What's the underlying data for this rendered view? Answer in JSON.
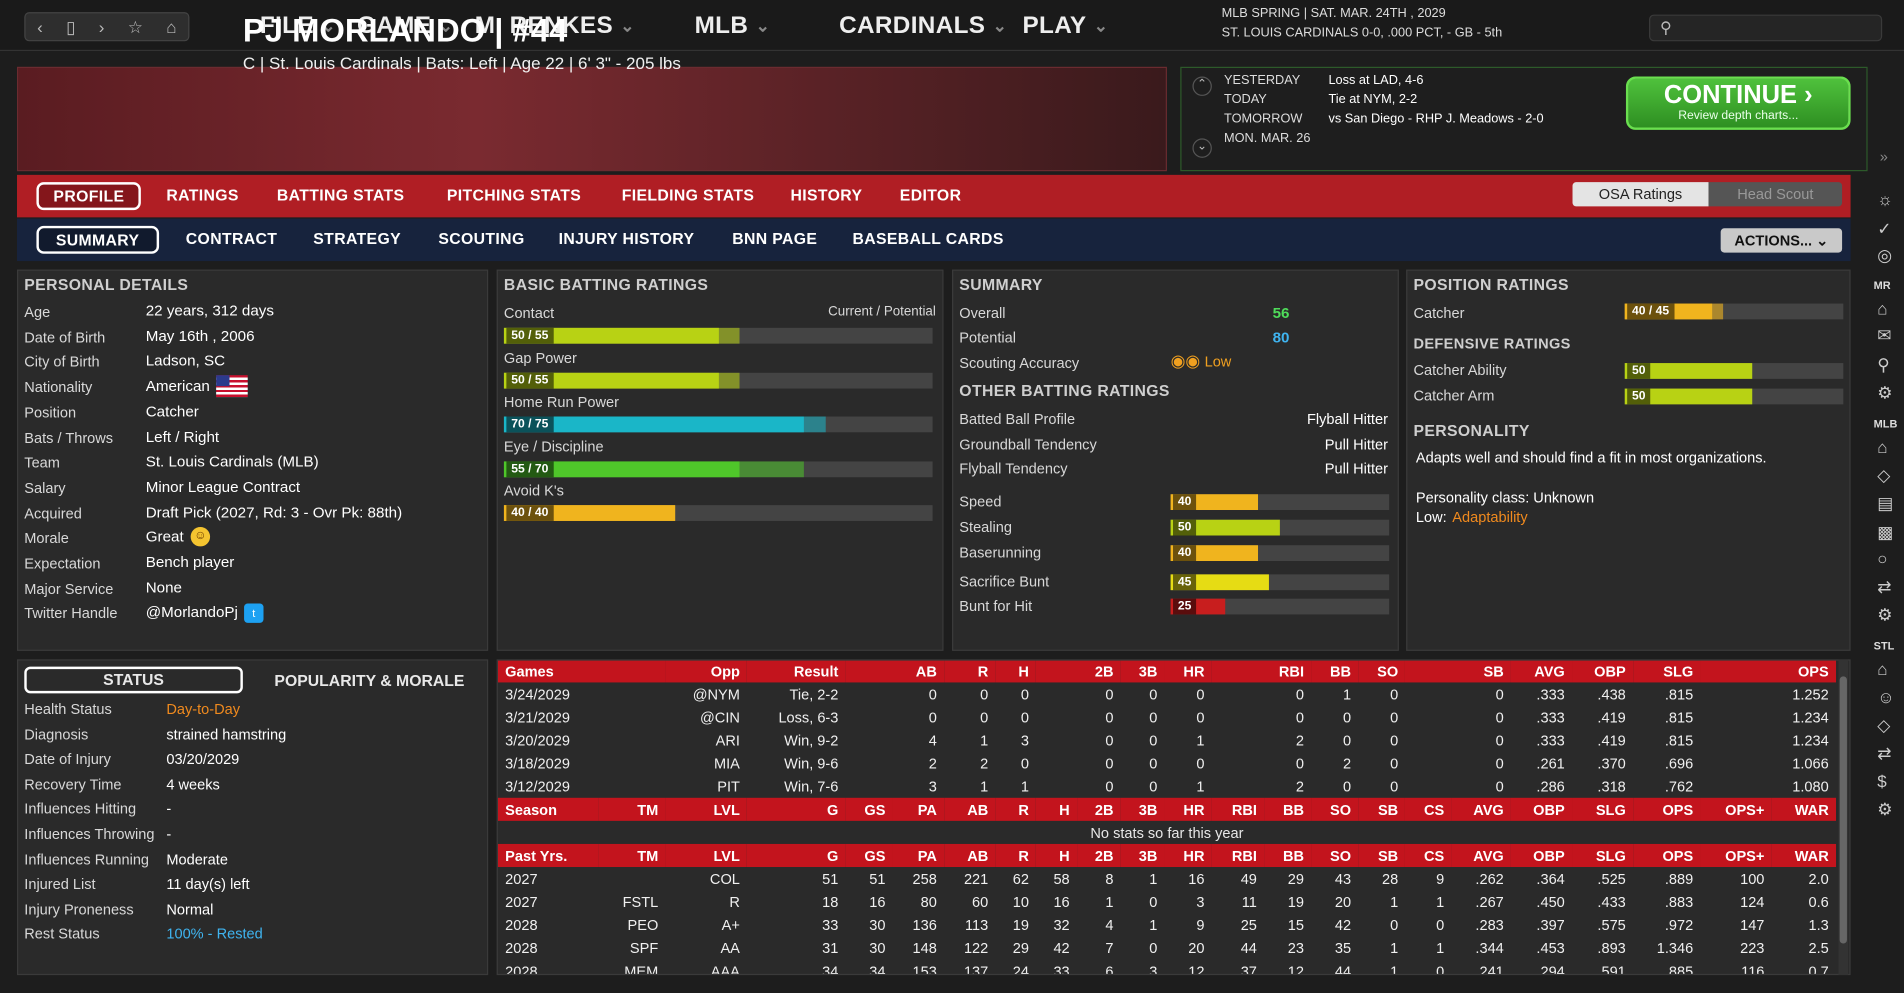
{
  "topbar": {
    "menus": [
      "FILE",
      "GAME",
      "M. RENKES",
      "MLB",
      "CARDINALS",
      "PLAY"
    ],
    "date_line1": "MLB SPRING  |  SAT. MAR. 24TH , 2029",
    "date_line2": "ST. LOUIS CARDINALS  0-0, .000 PCT, - GB - 5th"
  },
  "player": {
    "name": "PJ MORLANDO  |  #44",
    "info": "C | St. Louis Cardinals  |  Bats: Left  |  Age 22  |  6' 3\" - 205 lbs"
  },
  "schedule": {
    "labels": [
      "YESTERDAY",
      "TODAY",
      "TOMORROW",
      "MON. MAR. 26"
    ],
    "values": [
      "Loss at LAD, 4-6",
      "Tie at NYM, 2-2",
      "vs San Diego - RHP J. Meadows - 2-0",
      ""
    ],
    "continue": "CONTINUE",
    "continue_sub": "Review depth charts..."
  },
  "tabs1": [
    "PROFILE",
    "RATINGS",
    "BATTING STATS",
    "PITCHING STATS",
    "FIELDING STATS",
    "HISTORY",
    "EDITOR"
  ],
  "tabs2": [
    "SUMMARY",
    "CONTRACT",
    "STRATEGY",
    "SCOUTING",
    "INJURY HISTORY",
    "BNN PAGE",
    "BASEBALL CARDS"
  ],
  "osa": "OSA Ratings",
  "headscout": "Head Scout",
  "actions": "ACTIONS...",
  "personal": {
    "title": "PERSONAL DETAILS",
    "rows": [
      [
        "Age",
        "22 years, 312 days"
      ],
      [
        "Date of Birth",
        "May 16th , 2006"
      ],
      [
        "City of Birth",
        "Ladson, SC"
      ],
      [
        "Nationality",
        "American"
      ],
      [
        "Position",
        "Catcher"
      ],
      [
        "Bats / Throws",
        "Left / Right"
      ],
      [
        "Team",
        "St. Louis Cardinals (MLB)"
      ],
      [
        "Salary",
        "Minor League Contract"
      ],
      [
        "Acquired",
        "Draft Pick (2027, Rd: 3 - Ovr Pk: 88th)"
      ],
      [
        "Morale",
        "Great"
      ],
      [
        "Expectation",
        "Bench player"
      ],
      [
        "Major Service",
        "None"
      ],
      [
        "Twitter Handle",
        "@MorlandoPj"
      ]
    ]
  },
  "batting": {
    "title": "BASIC BATTING RATINGS",
    "cur_pot": "Current / Potential",
    "rows": [
      {
        "label": "Contact",
        "text": "50 / 55",
        "cur": 50,
        "pot": 55,
        "color": "#b8d214"
      },
      {
        "label": "Gap Power",
        "text": "50 / 55",
        "cur": 50,
        "pot": 55,
        "color": "#b8d214"
      },
      {
        "label": "Home Run Power",
        "text": "70 / 75",
        "cur": 70,
        "pot": 75,
        "color": "#1ab6c8"
      },
      {
        "label": "Eye / Discipline",
        "text": "55 / 70",
        "cur": 55,
        "pot": 70,
        "color": "#4fc72a"
      },
      {
        "label": "Avoid K's",
        "text": "40 / 40",
        "cur": 40,
        "pot": 40,
        "color": "#f0b41e"
      }
    ]
  },
  "summary": {
    "title": "SUMMARY",
    "overall_label": "Overall",
    "overall": "56",
    "potential_label": "Potential",
    "potential": "80",
    "scout_label": "Scouting Accuracy",
    "scout": "Low",
    "other_title": "OTHER BATTING RATINGS",
    "other": [
      [
        "Batted Ball Profile",
        "Flyball Hitter"
      ],
      [
        "Groundball Tendency",
        "Pull Hitter"
      ],
      [
        "Flyball Tendency",
        "Pull Hitter"
      ]
    ],
    "bars": [
      {
        "label": "Speed",
        "v": 40,
        "text": "40",
        "color": "#f0b41e"
      },
      {
        "label": "Stealing",
        "v": 50,
        "text": "50",
        "color": "#b8d214"
      },
      {
        "label": "Baserunning",
        "v": 40,
        "text": "40",
        "color": "#f0b41e"
      },
      {
        "label": "Sacrifice Bunt",
        "v": 45,
        "text": "45",
        "color": "#e6dc14"
      },
      {
        "label": "Bunt for Hit",
        "v": 25,
        "text": "25",
        "color": "#c81e1e"
      }
    ]
  },
  "position": {
    "title": "POSITION RATINGS",
    "catcher_label": "Catcher",
    "catcher_text": "40 / 45",
    "catcher_cur": 40,
    "catcher_pot": 45,
    "def_title": "DEFENSIVE RATINGS",
    "def": [
      {
        "label": "Catcher Ability",
        "v": 50,
        "text": "50"
      },
      {
        "label": "Catcher Arm",
        "v": 50,
        "text": "50"
      }
    ],
    "pers_title": "PERSONALITY",
    "pers_text": "Adapts well and should find a fit in most organizations.",
    "pers_class": "Personality class: Unknown",
    "pers_low_label": "Low:",
    "pers_low": "Adaptability"
  },
  "status": {
    "tab1": "STATUS",
    "tab2": "POPULARITY & MORALE",
    "rows": [
      [
        "Health Status",
        "Day-to-Day"
      ],
      [
        "Diagnosis",
        "strained hamstring"
      ],
      [
        "Date of Injury",
        "03/20/2029"
      ],
      [
        "Recovery Time",
        "4 weeks"
      ],
      [
        "Influences Hitting",
        "-"
      ],
      [
        "Influences Throwing",
        "-"
      ],
      [
        "Influences Running",
        "Moderate"
      ],
      [
        "Injured List",
        "11 day(s) left"
      ],
      [
        "Injury Proneness",
        "Normal"
      ],
      [
        "Rest Status",
        "100% - Rested"
      ]
    ]
  },
  "games": {
    "header": [
      "Games",
      "Opp",
      "Result",
      "AB",
      "R",
      "H",
      "2B",
      "3B",
      "HR",
      "RBI",
      "BB",
      "SO",
      "SB",
      "AVG",
      "OBP",
      "SLG",
      "OPS"
    ],
    "rows": [
      [
        "3/24/2029",
        "@NYM",
        "Tie, 2-2",
        "0",
        "0",
        "0",
        "0",
        "0",
        "0",
        "0",
        "1",
        "0",
        "0",
        ".333",
        ".438",
        ".815",
        "1.252"
      ],
      [
        "3/21/2029",
        "@CIN",
        "Loss, 6-3",
        "0",
        "0",
        "0",
        "0",
        "0",
        "0",
        "0",
        "0",
        "0",
        "0",
        ".333",
        ".419",
        ".815",
        "1.234"
      ],
      [
        "3/20/2029",
        "ARI",
        "Win, 9-2",
        "4",
        "1",
        "3",
        "0",
        "0",
        "1",
        "2",
        "0",
        "0",
        "0",
        ".333",
        ".419",
        ".815",
        "1.234"
      ],
      [
        "3/18/2029",
        "MIA",
        "Win, 9-6",
        "2",
        "2",
        "0",
        "0",
        "0",
        "0",
        "0",
        "2",
        "0",
        "0",
        ".261",
        ".370",
        ".696",
        "1.066"
      ],
      [
        "3/12/2029",
        "PIT",
        "Win, 7-6",
        "3",
        "1",
        "1",
        "0",
        "0",
        "1",
        "2",
        "0",
        "0",
        "0",
        ".286",
        ".318",
        ".762",
        "1.080"
      ]
    ]
  },
  "season": {
    "header": [
      "Season",
      "TM",
      "LVL",
      "G",
      "GS",
      "PA",
      "AB",
      "R",
      "H",
      "2B",
      "3B",
      "HR",
      "RBI",
      "BB",
      "SO",
      "SB",
      "CS",
      "AVG",
      "OBP",
      "SLG",
      "OPS",
      "OPS+",
      "WAR"
    ],
    "empty": "No stats so far this year"
  },
  "past": {
    "header": [
      "Past Yrs.",
      "TM",
      "LVL",
      "G",
      "GS",
      "PA",
      "AB",
      "R",
      "H",
      "2B",
      "3B",
      "HR",
      "RBI",
      "BB",
      "SO",
      "SB",
      "CS",
      "AVG",
      "OBP",
      "SLG",
      "OPS",
      "OPS+",
      "WAR"
    ],
    "rows": [
      [
        "2027",
        "",
        "COL",
        "51",
        "51",
        "258",
        "221",
        "62",
        "58",
        "8",
        "1",
        "16",
        "49",
        "29",
        "43",
        "28",
        "9",
        ".262",
        ".364",
        ".525",
        ".889",
        "100",
        "2.0"
      ],
      [
        "2027",
        "FSTL",
        "R",
        "18",
        "16",
        "80",
        "60",
        "10",
        "16",
        "1",
        "0",
        "3",
        "11",
        "19",
        "20",
        "1",
        "1",
        ".267",
        ".450",
        ".433",
        ".883",
        "124",
        "0.6"
      ],
      [
        "2028",
        "PEO",
        "A+",
        "33",
        "30",
        "136",
        "113",
        "19",
        "32",
        "4",
        "1",
        "9",
        "25",
        "15",
        "42",
        "0",
        "0",
        ".283",
        ".397",
        ".575",
        ".972",
        "147",
        "1.3"
      ],
      [
        "2028",
        "SPF",
        "AA",
        "31",
        "30",
        "148",
        "122",
        "29",
        "42",
        "7",
        "0",
        "20",
        "44",
        "23",
        "35",
        "1",
        "1",
        ".344",
        ".453",
        ".893",
        "1.346",
        "223",
        "2.5"
      ],
      [
        "2028",
        "MEM",
        "AAA",
        "34",
        "34",
        "153",
        "137",
        "24",
        "33",
        "6",
        "3",
        "12",
        "37",
        "12",
        "44",
        "1",
        "0",
        ".241",
        ".294",
        ".591",
        ".885",
        "116",
        "0.7"
      ]
    ]
  },
  "sidebar": {
    "labels": [
      "MR",
      "MLB",
      "STL"
    ]
  }
}
